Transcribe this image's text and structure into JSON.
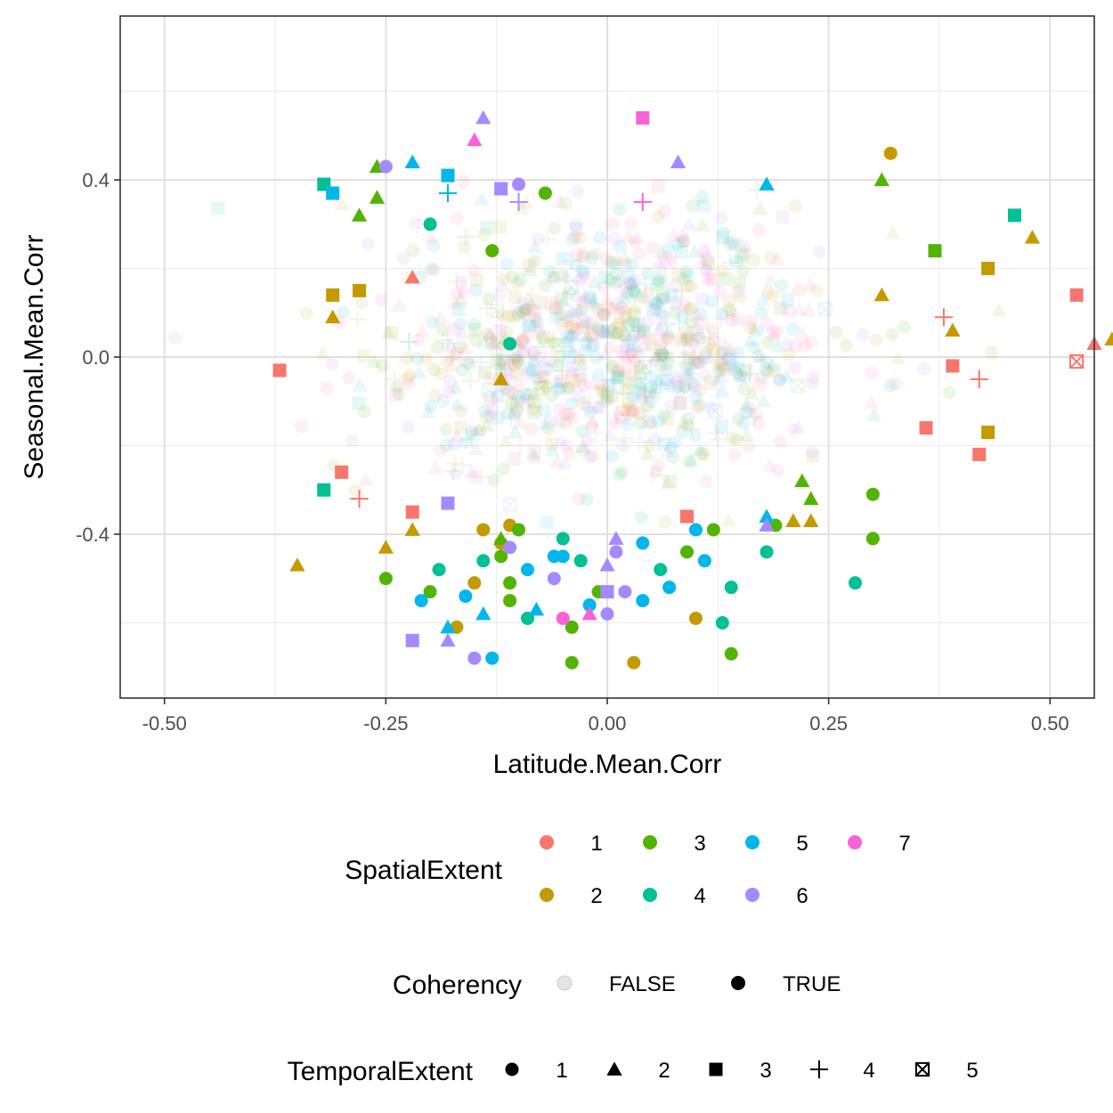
{
  "chart_data": {
    "type": "scatter",
    "xlabel": "Latitude.Mean.Corr",
    "ylabel": "Seasonal.Mean.Corr",
    "xlim": [
      -0.55,
      0.55
    ],
    "ylim": [
      -0.77,
      0.77
    ],
    "x_ticks": [
      -0.5,
      -0.25,
      0.0,
      0.25,
      0.5
    ],
    "x_tick_labels": [
      "-0.50",
      "-0.25",
      "0.00",
      "0.25",
      "0.50"
    ],
    "y_ticks": [
      -0.4,
      0.0,
      0.4
    ],
    "y_tick_labels": [
      "-0.4",
      "0.0",
      "0.4"
    ],
    "grid": true,
    "legend_position": "bottom",
    "legend": {
      "color": {
        "title": "SpatialExtent",
        "entries": [
          {
            "label": "1",
            "color": "#F8766D"
          },
          {
            "label": "2",
            "color": "#C49A00"
          },
          {
            "label": "3",
            "color": "#53B400"
          },
          {
            "label": "4",
            "color": "#00C094"
          },
          {
            "label": "5",
            "color": "#00B6EB"
          },
          {
            "label": "6",
            "color": "#A58AFF"
          },
          {
            "label": "7",
            "color": "#FB61D7"
          }
        ]
      },
      "alpha": {
        "title": "Coherency",
        "entries": [
          {
            "label": "FALSE",
            "alpha": 0.1
          },
          {
            "label": "TRUE",
            "alpha": 1.0
          }
        ]
      },
      "shape": {
        "title": "TemporalExtent",
        "entries": [
          {
            "label": "1",
            "shape": "circle"
          },
          {
            "label": "2",
            "shape": "triangle"
          },
          {
            "label": "3",
            "shape": "square"
          },
          {
            "label": "4",
            "shape": "plus"
          },
          {
            "label": "5",
            "shape": "square-cross"
          }
        ]
      }
    },
    "coherent_points": [
      {
        "x": -0.37,
        "y": -0.03,
        "s": 1,
        "t": 3
      },
      {
        "x": -0.3,
        "y": -0.26,
        "s": 1,
        "t": 3
      },
      {
        "x": -0.22,
        "y": -0.35,
        "s": 1,
        "t": 3
      },
      {
        "x": -0.28,
        "y": -0.32,
        "s": 1,
        "t": 4
      },
      {
        "x": -0.22,
        "y": 0.18,
        "s": 1,
        "t": 2
      },
      {
        "x": 0.09,
        "y": -0.36,
        "s": 1,
        "t": 3
      },
      {
        "x": 0.36,
        "y": -0.16,
        "s": 1,
        "t": 3
      },
      {
        "x": 0.38,
        "y": 0.09,
        "s": 1,
        "t": 4
      },
      {
        "x": 0.39,
        "y": -0.02,
        "s": 1,
        "t": 3
      },
      {
        "x": 0.42,
        "y": -0.05,
        "s": 1,
        "t": 4
      },
      {
        "x": 0.42,
        "y": -0.22,
        "s": 1,
        "t": 3
      },
      {
        "x": 0.53,
        "y": 0.14,
        "s": 1,
        "t": 3
      },
      {
        "x": 0.53,
        "y": -0.01,
        "s": 1,
        "t": 5
      },
      {
        "x": 0.55,
        "y": 0.03,
        "s": 1,
        "t": 2
      },
      {
        "x": -0.31,
        "y": 0.14,
        "s": 2,
        "t": 3
      },
      {
        "x": -0.28,
        "y": 0.15,
        "s": 2,
        "t": 3
      },
      {
        "x": -0.31,
        "y": 0.09,
        "s": 2,
        "t": 2
      },
      {
        "x": -0.14,
        "y": -0.39,
        "s": 2,
        "t": 1
      },
      {
        "x": -0.11,
        "y": -0.38,
        "s": 2,
        "t": 1
      },
      {
        "x": -0.12,
        "y": -0.42,
        "s": 2,
        "t": 1
      },
      {
        "x": -0.15,
        "y": -0.51,
        "s": 2,
        "t": 1
      },
      {
        "x": -0.17,
        "y": -0.61,
        "s": 2,
        "t": 1
      },
      {
        "x": -0.12,
        "y": -0.05,
        "s": 2,
        "t": 2
      },
      {
        "x": -0.22,
        "y": -0.39,
        "s": 2,
        "t": 2
      },
      {
        "x": -0.25,
        "y": -0.43,
        "s": 2,
        "t": 2
      },
      {
        "x": -0.35,
        "y": -0.47,
        "s": 2,
        "t": 2
      },
      {
        "x": 0.03,
        "y": -0.69,
        "s": 2,
        "t": 1
      },
      {
        "x": 0.1,
        "y": -0.59,
        "s": 2,
        "t": 1
      },
      {
        "x": 0.21,
        "y": -0.37,
        "s": 2,
        "t": 2
      },
      {
        "x": 0.23,
        "y": -0.37,
        "s": 2,
        "t": 2
      },
      {
        "x": 0.32,
        "y": 0.46,
        "s": 2,
        "t": 1
      },
      {
        "x": 0.31,
        "y": 0.14,
        "s": 2,
        "t": 2
      },
      {
        "x": 0.39,
        "y": 0.06,
        "s": 2,
        "t": 2
      },
      {
        "x": 0.43,
        "y": 0.2,
        "s": 2,
        "t": 3
      },
      {
        "x": 0.43,
        "y": -0.17,
        "s": 2,
        "t": 3
      },
      {
        "x": 0.48,
        "y": 0.27,
        "s": 2,
        "t": 2
      },
      {
        "x": 0.57,
        "y": 0.04,
        "s": 2,
        "t": 2
      },
      {
        "x": -0.26,
        "y": 0.43,
        "s": 3,
        "t": 2
      },
      {
        "x": -0.26,
        "y": 0.36,
        "s": 3,
        "t": 2
      },
      {
        "x": -0.28,
        "y": 0.32,
        "s": 3,
        "t": 2
      },
      {
        "x": -0.07,
        "y": 0.37,
        "s": 3,
        "t": 1
      },
      {
        "x": -0.13,
        "y": 0.24,
        "s": 3,
        "t": 1
      },
      {
        "x": -0.25,
        "y": -0.5,
        "s": 3,
        "t": 1
      },
      {
        "x": -0.2,
        "y": -0.53,
        "s": 3,
        "t": 1
      },
      {
        "x": -0.12,
        "y": -0.45,
        "s": 3,
        "t": 1
      },
      {
        "x": -0.11,
        "y": -0.55,
        "s": 3,
        "t": 1
      },
      {
        "x": -0.11,
        "y": -0.51,
        "s": 3,
        "t": 1
      },
      {
        "x": -0.1,
        "y": -0.39,
        "s": 3,
        "t": 1
      },
      {
        "x": -0.12,
        "y": -0.41,
        "s": 3,
        "t": 2
      },
      {
        "x": -0.04,
        "y": -0.61,
        "s": 3,
        "t": 1
      },
      {
        "x": -0.04,
        "y": -0.69,
        "s": 3,
        "t": 1
      },
      {
        "x": -0.01,
        "y": -0.53,
        "s": 3,
        "t": 1
      },
      {
        "x": 0.09,
        "y": -0.44,
        "s": 3,
        "t": 1
      },
      {
        "x": 0.12,
        "y": -0.39,
        "s": 3,
        "t": 1
      },
      {
        "x": 0.14,
        "y": -0.67,
        "s": 3,
        "t": 1
      },
      {
        "x": 0.19,
        "y": -0.38,
        "s": 3,
        "t": 1
      },
      {
        "x": 0.22,
        "y": -0.28,
        "s": 3,
        "t": 2
      },
      {
        "x": 0.23,
        "y": -0.32,
        "s": 3,
        "t": 2
      },
      {
        "x": 0.3,
        "y": -0.31,
        "s": 3,
        "t": 1
      },
      {
        "x": 0.3,
        "y": -0.41,
        "s": 3,
        "t": 1
      },
      {
        "x": 0.31,
        "y": 0.4,
        "s": 3,
        "t": 2
      },
      {
        "x": 0.37,
        "y": 0.24,
        "s": 3,
        "t": 3
      },
      {
        "x": -0.32,
        "y": 0.39,
        "s": 4,
        "t": 3
      },
      {
        "x": -0.32,
        "y": -0.3,
        "s": 4,
        "t": 3
      },
      {
        "x": -0.2,
        "y": 0.3,
        "s": 4,
        "t": 1
      },
      {
        "x": -0.11,
        "y": 0.03,
        "s": 4,
        "t": 1
      },
      {
        "x": -0.19,
        "y": -0.48,
        "s": 4,
        "t": 1
      },
      {
        "x": -0.14,
        "y": -0.46,
        "s": 4,
        "t": 1
      },
      {
        "x": -0.09,
        "y": -0.59,
        "s": 4,
        "t": 1
      },
      {
        "x": -0.05,
        "y": -0.41,
        "s": 4,
        "t": 1
      },
      {
        "x": -0.03,
        "y": -0.46,
        "s": 4,
        "t": 1
      },
      {
        "x": 0.06,
        "y": -0.48,
        "s": 4,
        "t": 1
      },
      {
        "x": 0.13,
        "y": -0.6,
        "s": 4,
        "t": 1
      },
      {
        "x": 0.14,
        "y": -0.52,
        "s": 4,
        "t": 1
      },
      {
        "x": 0.18,
        "y": -0.44,
        "s": 4,
        "t": 1
      },
      {
        "x": 0.28,
        "y": -0.51,
        "s": 4,
        "t": 1
      },
      {
        "x": 0.46,
        "y": 0.32,
        "s": 4,
        "t": 3
      },
      {
        "x": -0.31,
        "y": 0.37,
        "s": 5,
        "t": 3
      },
      {
        "x": -0.22,
        "y": 0.44,
        "s": 5,
        "t": 2
      },
      {
        "x": -0.18,
        "y": 0.41,
        "s": 5,
        "t": 3
      },
      {
        "x": -0.18,
        "y": 0.37,
        "s": 5,
        "t": 4
      },
      {
        "x": -0.21,
        "y": -0.55,
        "s": 5,
        "t": 1
      },
      {
        "x": -0.18,
        "y": -0.61,
        "s": 5,
        "t": 2
      },
      {
        "x": -0.16,
        "y": -0.54,
        "s": 5,
        "t": 1
      },
      {
        "x": -0.14,
        "y": -0.58,
        "s": 5,
        "t": 2
      },
      {
        "x": -0.13,
        "y": -0.68,
        "s": 5,
        "t": 1
      },
      {
        "x": -0.09,
        "y": -0.48,
        "s": 5,
        "t": 1
      },
      {
        "x": -0.06,
        "y": -0.45,
        "s": 5,
        "t": 1
      },
      {
        "x": -0.05,
        "y": -0.45,
        "s": 5,
        "t": 1
      },
      {
        "x": -0.08,
        "y": -0.57,
        "s": 5,
        "t": 2
      },
      {
        "x": -0.02,
        "y": -0.56,
        "s": 5,
        "t": 1
      },
      {
        "x": 0.04,
        "y": -0.42,
        "s": 5,
        "t": 1
      },
      {
        "x": 0.04,
        "y": -0.55,
        "s": 5,
        "t": 1
      },
      {
        "x": 0.07,
        "y": -0.52,
        "s": 5,
        "t": 1
      },
      {
        "x": 0.1,
        "y": -0.39,
        "s": 5,
        "t": 1
      },
      {
        "x": 0.11,
        "y": -0.46,
        "s": 5,
        "t": 1
      },
      {
        "x": 0.18,
        "y": -0.36,
        "s": 5,
        "t": 2
      },
      {
        "x": 0.18,
        "y": 0.39,
        "s": 5,
        "t": 2
      },
      {
        "x": -0.25,
        "y": 0.43,
        "s": 6,
        "t": 1
      },
      {
        "x": -0.14,
        "y": 0.54,
        "s": 6,
        "t": 2
      },
      {
        "x": -0.12,
        "y": 0.38,
        "s": 6,
        "t": 3
      },
      {
        "x": -0.1,
        "y": 0.39,
        "s": 6,
        "t": 1
      },
      {
        "x": -0.1,
        "y": 0.35,
        "s": 6,
        "t": 4
      },
      {
        "x": 0.08,
        "y": 0.44,
        "s": 6,
        "t": 2
      },
      {
        "x": -0.11,
        "y": -0.43,
        "s": 6,
        "t": 1
      },
      {
        "x": -0.06,
        "y": -0.5,
        "s": 6,
        "t": 1
      },
      {
        "x": 0.01,
        "y": -0.41,
        "s": 6,
        "t": 2
      },
      {
        "x": 0.01,
        "y": -0.44,
        "s": 6,
        "t": 1
      },
      {
        "x": 0.0,
        "y": -0.47,
        "s": 6,
        "t": 2
      },
      {
        "x": 0.0,
        "y": -0.53,
        "s": 6,
        "t": 3
      },
      {
        "x": 0.02,
        "y": -0.53,
        "s": 6,
        "t": 1
      },
      {
        "x": 0.0,
        "y": -0.58,
        "s": 6,
        "t": 1
      },
      {
        "x": -0.18,
        "y": -0.33,
        "s": 6,
        "t": 3
      },
      {
        "x": -0.22,
        "y": -0.64,
        "s": 6,
        "t": 3
      },
      {
        "x": -0.18,
        "y": -0.64,
        "s": 6,
        "t": 2
      },
      {
        "x": -0.15,
        "y": -0.68,
        "s": 6,
        "t": 1
      },
      {
        "x": 0.18,
        "y": -0.38,
        "s": 6,
        "t": 2
      },
      {
        "x": -0.15,
        "y": 0.49,
        "s": 7,
        "t": 2
      },
      {
        "x": 0.04,
        "y": 0.54,
        "s": 7,
        "t": 3
      },
      {
        "x": 0.04,
        "y": 0.35,
        "s": 7,
        "t": 4
      },
      {
        "x": -0.05,
        "y": -0.59,
        "s": 7,
        "t": 1
      },
      {
        "x": -0.02,
        "y": -0.58,
        "s": 7,
        "t": 2
      }
    ]
  }
}
